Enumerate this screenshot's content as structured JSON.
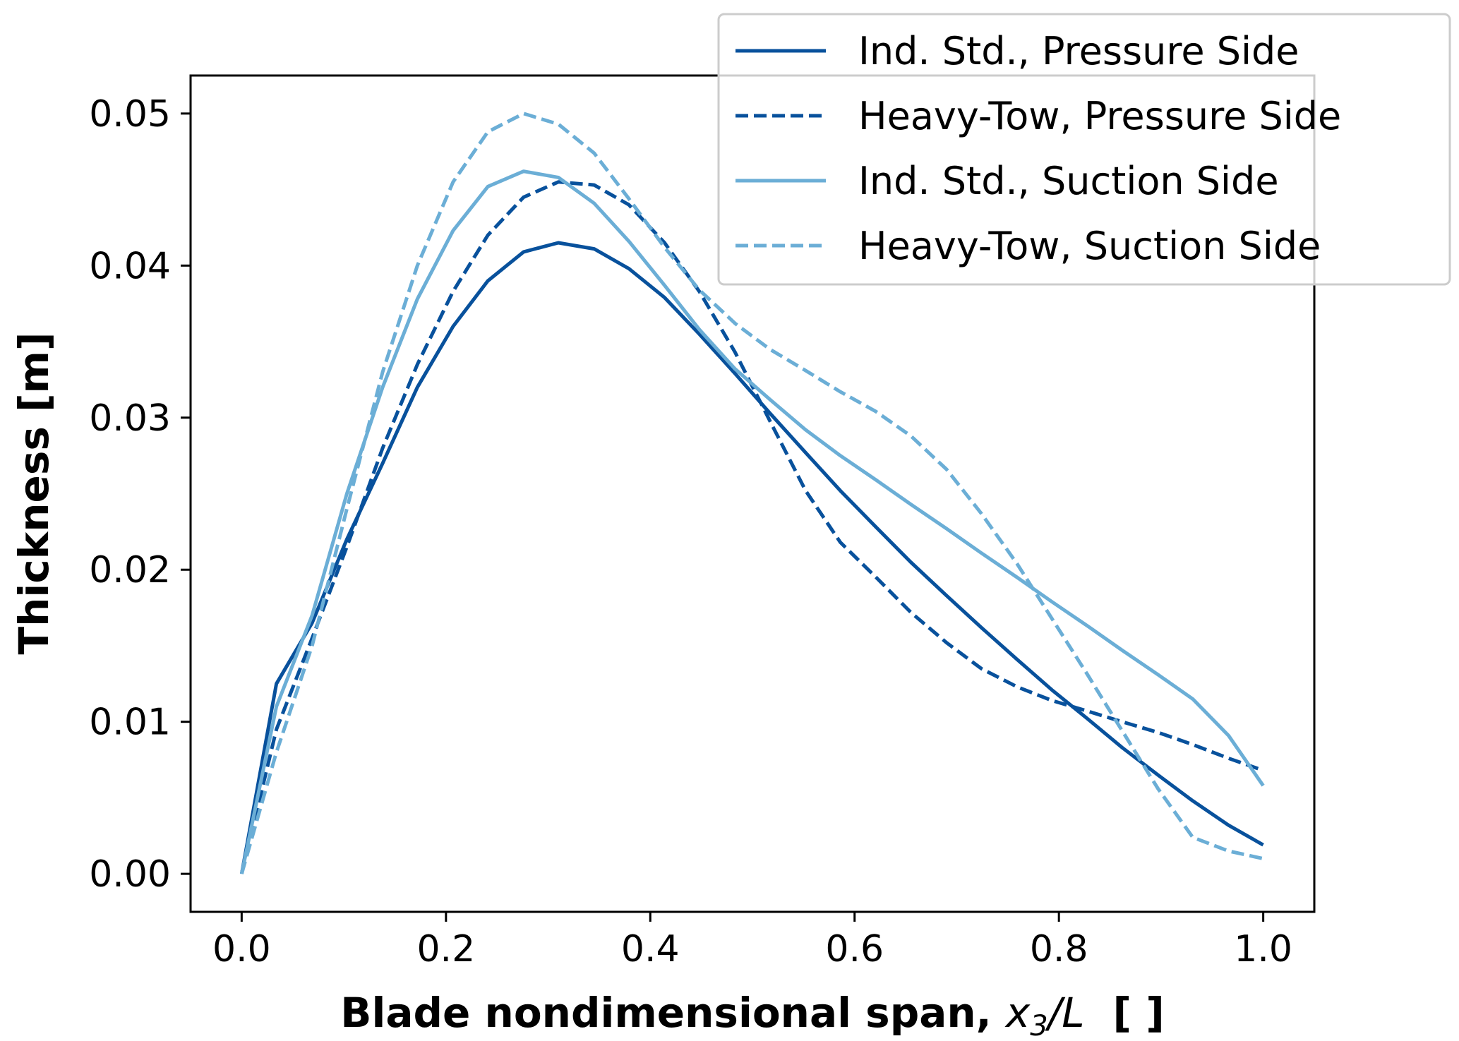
{
  "chart_data": {
    "type": "line",
    "title": "",
    "xlabel_main": "Blade nondimensional span, ",
    "xlabel_var": "x",
    "xlabel_sub": "3",
    "xlabel_var2": "/L",
    "xlabel_unit": "[ ]",
    "ylabel": "Thickness [m]",
    "xlim": [
      -0.05,
      1.05
    ],
    "ylim": [
      -0.0025,
      0.0525
    ],
    "xticks": [
      "0.0",
      "0.2",
      "0.4",
      "0.6",
      "0.8",
      "1.0"
    ],
    "xtick_values": [
      0.0,
      0.2,
      0.4,
      0.6,
      0.8,
      1.0
    ],
    "yticks": [
      "0.00",
      "0.01",
      "0.02",
      "0.03",
      "0.04",
      "0.05"
    ],
    "ytick_values": [
      0.0,
      0.01,
      0.02,
      0.03,
      0.04,
      0.05
    ],
    "grid": false,
    "legend_position": "top-right",
    "series": [
      {
        "name": "Ind. Std., Pressure Side",
        "color": "#08519c",
        "dash": "solid",
        "x": [
          0.0,
          0.034,
          0.069,
          0.103,
          0.138,
          0.172,
          0.207,
          0.241,
          0.276,
          0.31,
          0.345,
          0.379,
          0.414,
          0.448,
          0.483,
          0.517,
          0.552,
          0.586,
          0.621,
          0.655,
          0.69,
          0.724,
          0.759,
          0.793,
          0.828,
          0.862,
          0.897,
          0.931,
          0.966,
          1.0
        ],
        "y": [
          0.0,
          0.0125,
          0.0165,
          0.022,
          0.027,
          0.032,
          0.036,
          0.039,
          0.0409,
          0.0415,
          0.0411,
          0.0398,
          0.0379,
          0.0355,
          0.0329,
          0.0303,
          0.0277,
          0.0252,
          0.0228,
          0.0205,
          0.0183,
          0.0162,
          0.0141,
          0.0121,
          0.0102,
          0.0083,
          0.0065,
          0.0048,
          0.0032,
          0.0019
        ]
      },
      {
        "name": "Heavy-Tow, Pressure Side",
        "color": "#08519c",
        "dash": "dashed",
        "x": [
          0.0,
          0.034,
          0.069,
          0.103,
          0.138,
          0.172,
          0.207,
          0.241,
          0.276,
          0.31,
          0.345,
          0.379,
          0.414,
          0.448,
          0.483,
          0.517,
          0.552,
          0.586,
          0.621,
          0.655,
          0.69,
          0.724,
          0.759,
          0.793,
          0.828,
          0.862,
          0.897,
          0.931,
          0.966,
          1.0
        ],
        "y": [
          0.0,
          0.0095,
          0.0155,
          0.0215,
          0.028,
          0.0335,
          0.0383,
          0.042,
          0.0445,
          0.0455,
          0.0453,
          0.044,
          0.0415,
          0.0383,
          0.0343,
          0.0298,
          0.0252,
          0.0218,
          0.0195,
          0.0172,
          0.0152,
          0.0135,
          0.0123,
          0.0114,
          0.0107,
          0.01,
          0.0093,
          0.0085,
          0.0076,
          0.0068
        ]
      },
      {
        "name": "Ind. Std., Suction Side",
        "color": "#6baed6",
        "dash": "solid",
        "x": [
          0.0,
          0.034,
          0.069,
          0.103,
          0.138,
          0.172,
          0.207,
          0.241,
          0.276,
          0.31,
          0.345,
          0.379,
          0.414,
          0.448,
          0.483,
          0.517,
          0.552,
          0.586,
          0.621,
          0.655,
          0.69,
          0.724,
          0.759,
          0.793,
          0.828,
          0.862,
          0.897,
          0.931,
          0.966,
          1.0
        ],
        "y": [
          0.0,
          0.011,
          0.017,
          0.025,
          0.032,
          0.0378,
          0.0423,
          0.0452,
          0.0462,
          0.0458,
          0.0441,
          0.0416,
          0.0387,
          0.0358,
          0.0332,
          0.0312,
          0.0292,
          0.0275,
          0.0259,
          0.0243,
          0.0227,
          0.0211,
          0.0195,
          0.0179,
          0.0163,
          0.0147,
          0.0131,
          0.0115,
          0.0091,
          0.0058
        ]
      },
      {
        "name": "Heavy-Tow, Suction Side",
        "color": "#6baed6",
        "dash": "dashed",
        "x": [
          0.0,
          0.034,
          0.069,
          0.103,
          0.138,
          0.172,
          0.207,
          0.241,
          0.276,
          0.31,
          0.345,
          0.379,
          0.414,
          0.448,
          0.483,
          0.517,
          0.552,
          0.586,
          0.621,
          0.655,
          0.69,
          0.724,
          0.759,
          0.793,
          0.828,
          0.862,
          0.897,
          0.931,
          0.966,
          1.0
        ],
        "y": [
          0.0,
          0.008,
          0.015,
          0.024,
          0.033,
          0.04,
          0.0455,
          0.0488,
          0.05,
          0.0493,
          0.0474,
          0.0444,
          0.0412,
          0.0384,
          0.0362,
          0.0345,
          0.0331,
          0.0317,
          0.0304,
          0.0288,
          0.0266,
          0.0237,
          0.0204,
          0.0168,
          0.0131,
          0.0094,
          0.0056,
          0.0024,
          0.0015,
          0.001
        ]
      }
    ]
  }
}
